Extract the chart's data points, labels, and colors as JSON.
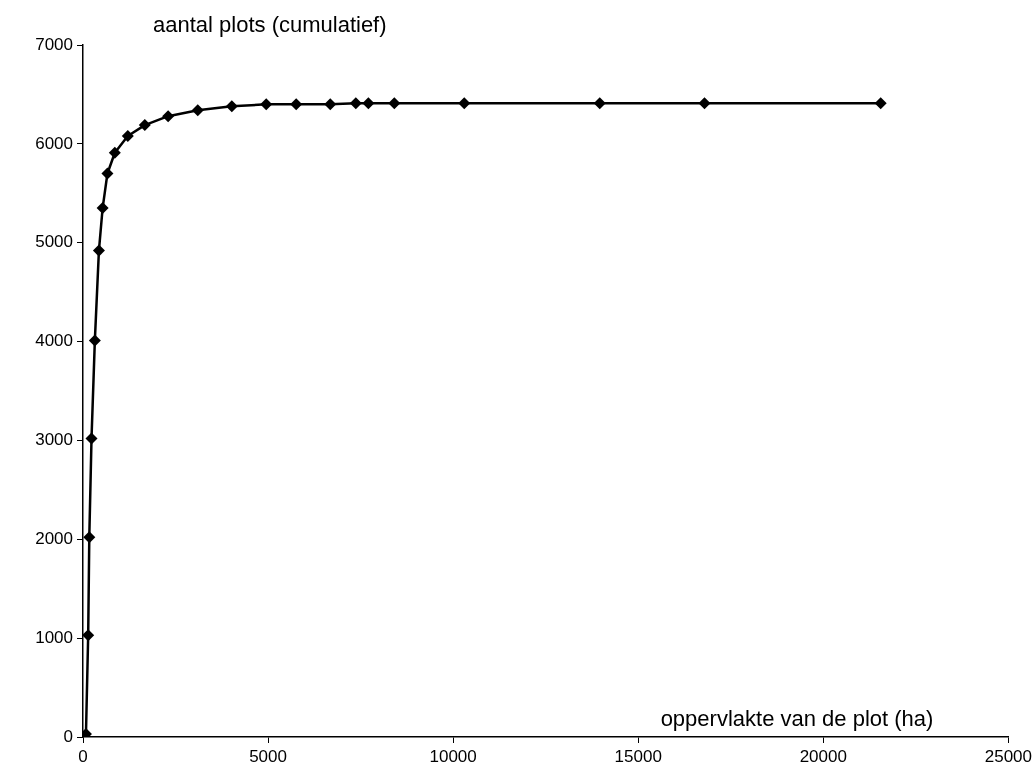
{
  "chart_data": {
    "type": "line",
    "xlabel": "oppervlakte van de plot (ha)",
    "ylabel": "aantal plots (cumulatief)",
    "x": [
      80,
      140,
      170,
      230,
      320,
      430,
      530,
      660,
      860,
      1210,
      1670,
      2300,
      3100,
      4020,
      4950,
      5760,
      6680,
      7370,
      7710,
      8410,
      10300,
      13960,
      16790,
      21550
    ],
    "series": [
      {
        "color": "#000000",
        "values": [
          30,
          1030,
          2020,
          3020,
          4010,
          4920,
          5350,
          5700,
          5910,
          6080,
          6190,
          6280,
          6340,
          6380,
          6400,
          6400,
          6400,
          6410,
          6410,
          6410,
          6410,
          6410,
          6410,
          6410
        ]
      }
    ],
    "xlim": [
      0,
      25000
    ],
    "xticks": [
      0,
      5000,
      10000,
      15000,
      20000,
      25000
    ],
    "ylim": [
      0,
      7000
    ],
    "yticks": [
      0,
      1000,
      2000,
      3000,
      4000,
      5000,
      6000,
      7000
    ],
    "grid": false,
    "legend": false,
    "marker": "diamond",
    "line_style": "solid"
  }
}
